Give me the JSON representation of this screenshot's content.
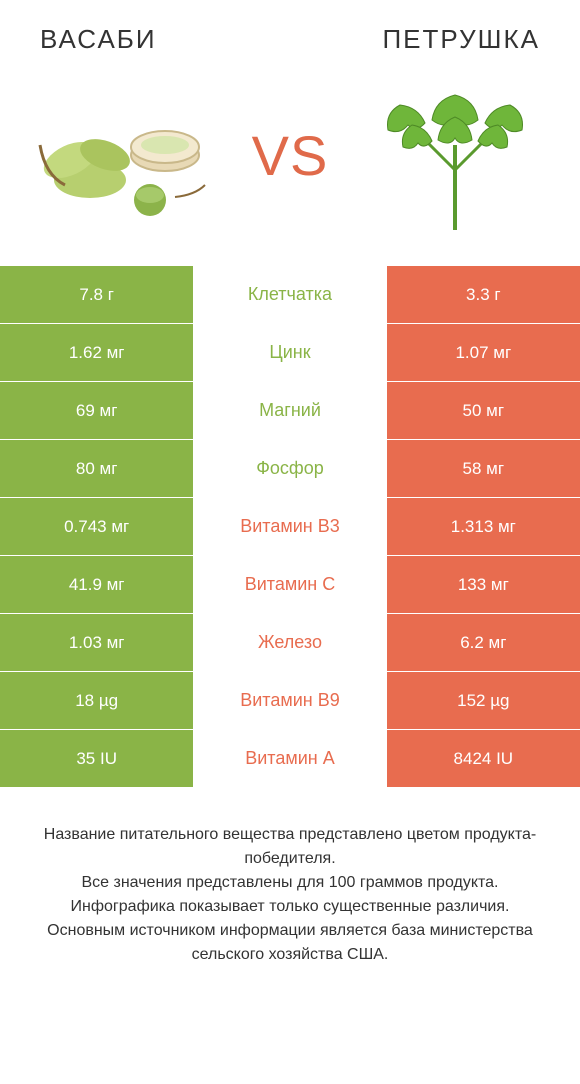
{
  "colors": {
    "left": "#8ab447",
    "right": "#e86c4f",
    "bg": "#ffffff",
    "text": "#333333",
    "vs": "#e06a4a"
  },
  "header": {
    "left_title": "ВАСАБИ",
    "right_title": "ПЕТРУШКА",
    "vs_label": "VS"
  },
  "rows": [
    {
      "label": "Клетчатка",
      "left": "7.8 г",
      "right": "3.3 г",
      "winner": "left"
    },
    {
      "label": "Цинк",
      "left": "1.62 мг",
      "right": "1.07 мг",
      "winner": "left"
    },
    {
      "label": "Магний",
      "left": "69 мг",
      "right": "50 мг",
      "winner": "left"
    },
    {
      "label": "Фосфор",
      "left": "80 мг",
      "right": "58 мг",
      "winner": "left"
    },
    {
      "label": "Витамин B3",
      "left": "0.743 мг",
      "right": "1.313 мг",
      "winner": "right"
    },
    {
      "label": "Витамин C",
      "left": "41.9 мг",
      "right": "133 мг",
      "winner": "right"
    },
    {
      "label": "Железо",
      "left": "1.03 мг",
      "right": "6.2 мг",
      "winner": "right"
    },
    {
      "label": "Витамин B9",
      "left": "18 µg",
      "right": "152 µg",
      "winner": "right"
    },
    {
      "label": "Витамин A",
      "left": "35 IU",
      "right": "8424 IU",
      "winner": "right"
    }
  ],
  "footer": {
    "line1": "Название питательного вещества представлено цветом продукта-победителя.",
    "line2": "Все значения представлены для 100 граммов продукта.",
    "line3": "Инфографика показывает только существенные различия.",
    "line4": "Основным источником информации является база министерства сельского хозяйства США."
  }
}
